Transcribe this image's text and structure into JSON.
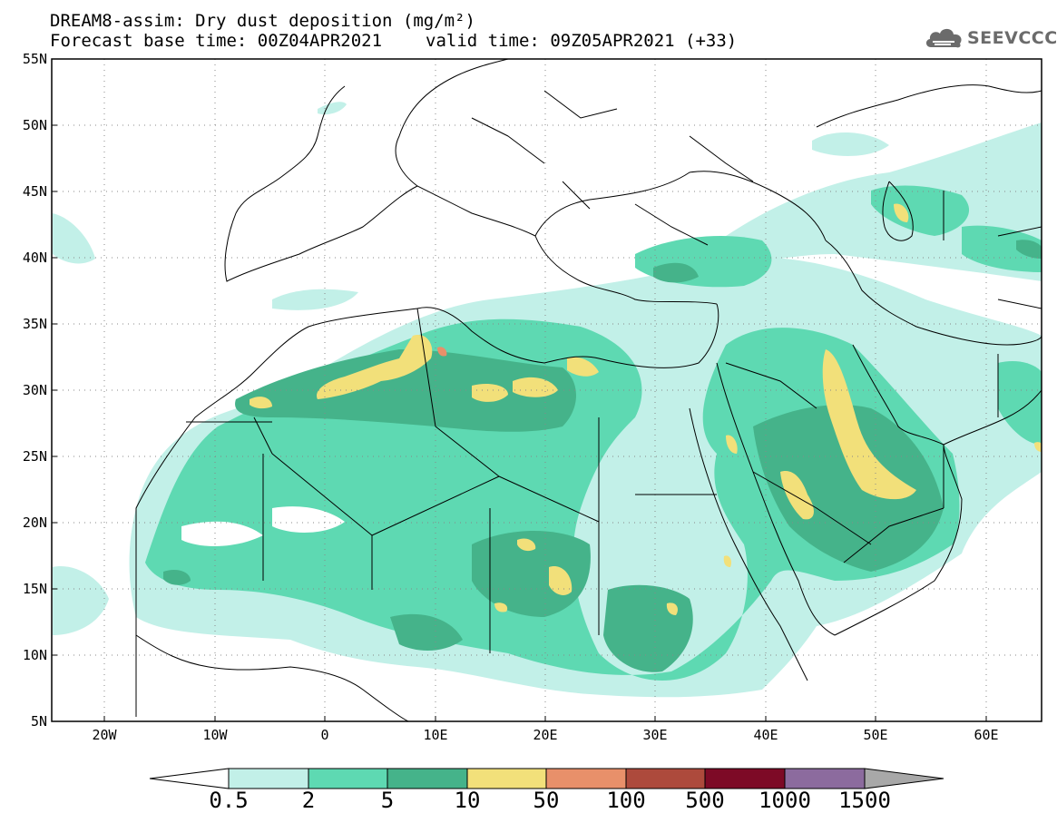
{
  "header": {
    "line1": "DREAM8-assim: Dry dust deposition (mg/m²)",
    "base_time": "Forecast base time: 00Z04APR2021",
    "valid_time": "valid time: 09Z05APR2021 (+33)"
  },
  "logo": {
    "text": "SEEVCCC",
    "icon": "cloud-logo-icon"
  },
  "map": {
    "lat_labels": [
      "55N",
      "50N",
      "45N",
      "40N",
      "35N",
      "30N",
      "25N",
      "20N",
      "15N",
      "10N",
      "5N"
    ],
    "lon_labels": [
      "20W",
      "10W",
      "0",
      "10E",
      "20E",
      "30E",
      "40E",
      "50E",
      "60E"
    ],
    "lon_range": [
      -25,
      65
    ],
    "lat_range": [
      5,
      55
    ],
    "grid": "dotted"
  },
  "legend": {
    "levels": [
      "0.5",
      "2",
      "5",
      "10",
      "50",
      "100",
      "500",
      "1000",
      "1500"
    ],
    "colors": [
      "#c2f0e8",
      "#5ed9b2",
      "#45b38a",
      "#f2e07a",
      "#e8906a",
      "#ad4a3c",
      "#7d0a26",
      "#8c6b9e",
      "#a8a8a8"
    ]
  }
}
